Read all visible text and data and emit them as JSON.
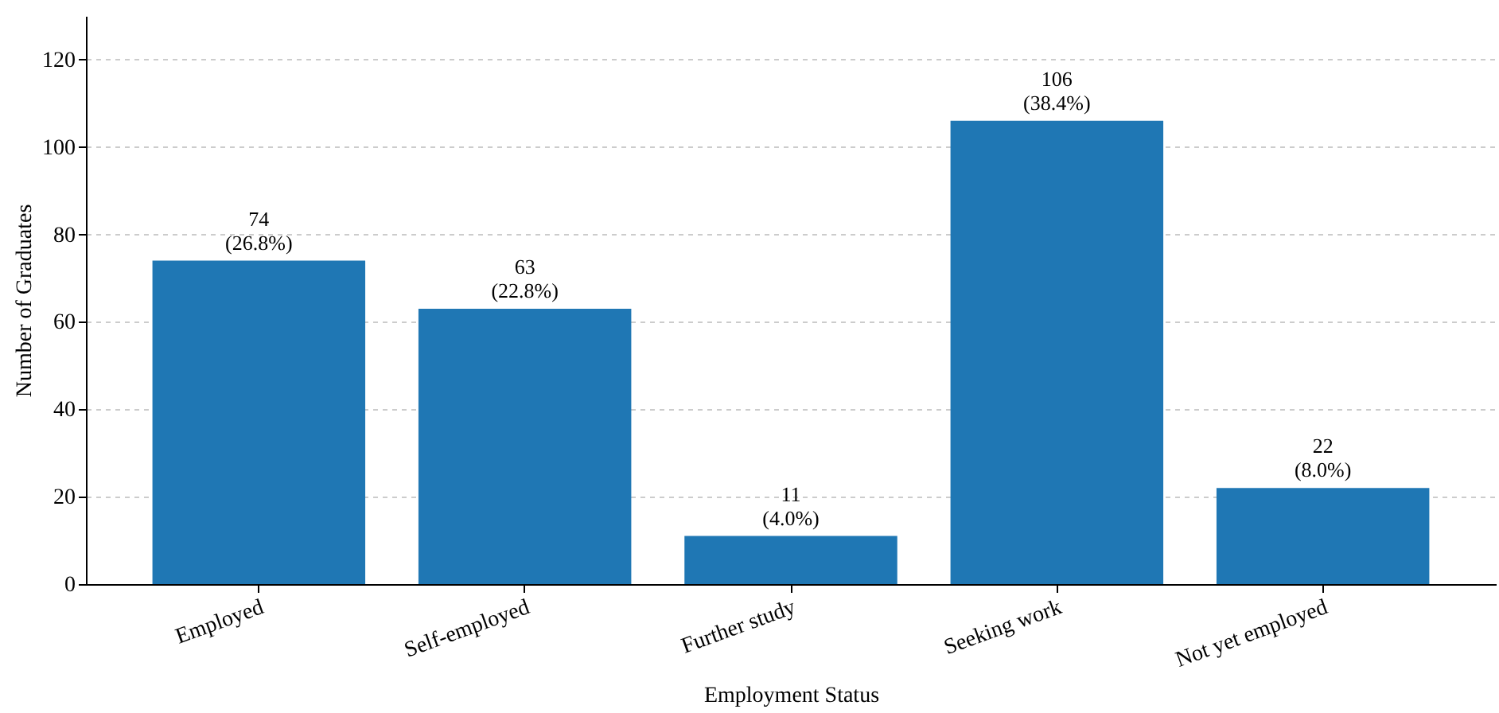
{
  "chart_data": {
    "type": "bar",
    "xlabel": "Employment Status",
    "ylabel": "Number of Graduates",
    "categories": [
      "Employed",
      "Self-employed",
      "Further study",
      "Seeking work",
      "Not yet employed"
    ],
    "values": [
      74,
      63,
      11,
      106,
      22
    ],
    "value_labels": [
      "74\n(26.8%)",
      "63\n(22.8%)",
      "11\n(4.0%)",
      "106\n(38.4%)",
      "22\n(8.0%)"
    ],
    "color": "#1f77b4",
    "ylim": [
      0,
      130
    ],
    "yticks": [
      0,
      20,
      40,
      60,
      80,
      100,
      120
    ],
    "grid": "y"
  }
}
